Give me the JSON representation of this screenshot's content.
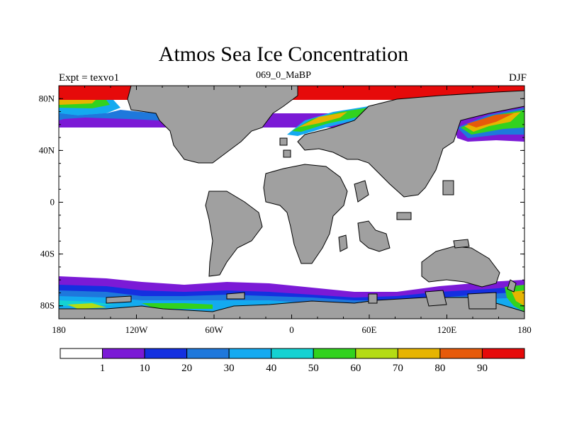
{
  "title": "Atmos Sea Ice Concentration",
  "subtitle": "069_0_MaBP",
  "left_label": "Expt = texvo1",
  "right_label": "DJF",
  "x_ticks": [
    {
      "value": -180,
      "label": "180"
    },
    {
      "value": -120,
      "label": "120W"
    },
    {
      "value": -60,
      "label": "60W"
    },
    {
      "value": 0,
      "label": "0"
    },
    {
      "value": 60,
      "label": "60E"
    },
    {
      "value": 120,
      "label": "120E"
    },
    {
      "value": 180,
      "label": "180"
    }
  ],
  "y_ticks": [
    {
      "value": 80,
      "label": "80N"
    },
    {
      "value": 40,
      "label": "40N"
    },
    {
      "value": 0,
      "label": "0"
    },
    {
      "value": -40,
      "label": "40S"
    },
    {
      "value": -80,
      "label": "80S"
    }
  ],
  "lon_range": [
    -180,
    180
  ],
  "lat_range": [
    -90,
    90
  ],
  "colorbar": {
    "colors": [
      "#ffffff",
      "#7b1ad6",
      "#1430e0",
      "#1e78dc",
      "#14aaf0",
      "#14d2d2",
      "#32d21e",
      "#b4dc14",
      "#e6b400",
      "#e65a0a",
      "#e60a0a"
    ],
    "labels": [
      "1",
      "10",
      "20",
      "30",
      "40",
      "50",
      "60",
      "70",
      "80",
      "90"
    ]
  },
  "land_color": "#a0a0a0"
}
